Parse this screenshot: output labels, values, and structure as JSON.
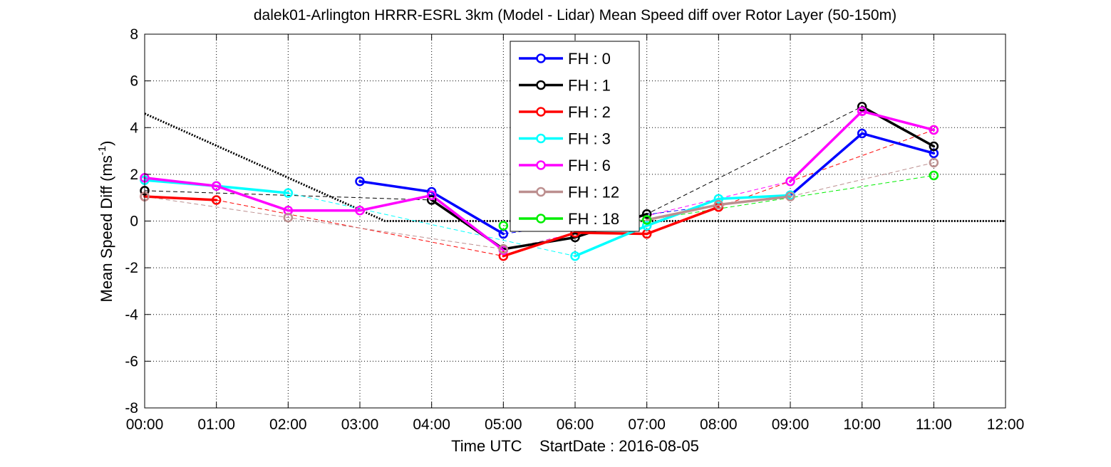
{
  "chart_data": {
    "type": "line",
    "title": "dalek01-Arlington HRRR-ESRL 3km (Model - Lidar) Mean Speed diff over Rotor Layer (50-150m)",
    "xlabel": "Time UTC    StartDate : 2016-08-05",
    "ylabel": "Mean Speed Diff (ms",
    "ylabel_sup": "-1",
    "ylabel_end": ")",
    "xlim": [
      0,
      12
    ],
    "ylim": [
      -8,
      8
    ],
    "grid": true,
    "legend_position": "top-center",
    "x_tick_values": [
      0,
      1,
      2,
      3,
      4,
      5,
      6,
      7,
      8,
      9,
      10,
      11,
      12
    ],
    "x_tick_labels": [
      "00:00",
      "01:00",
      "02:00",
      "03:00",
      "04:00",
      "05:00",
      "06:00",
      "07:00",
      "08:00",
      "09:00",
      "10:00",
      "11:00",
      "12:00"
    ],
    "y_tick_values": [
      -8,
      -6,
      -4,
      -2,
      0,
      2,
      4,
      6,
      8
    ],
    "y_tick_labels": [
      "-8",
      "-6",
      "-4",
      "-2",
      "0",
      "2",
      "4",
      "6",
      "8"
    ],
    "series": [
      {
        "name": "FH : 0",
        "color": "#0000ff",
        "points": [
          [
            3,
            1.7
          ],
          [
            4,
            1.25
          ],
          [
            5,
            -0.55
          ],
          [
            11,
            2.9
          ],
          [
            10,
            3.75
          ],
          [
            9,
            1.1
          ]
        ]
      },
      {
        "name": "FH : 1",
        "color": "#000000",
        "points": [
          [
            0,
            1.3
          ],
          [
            4,
            0.9
          ],
          [
            5,
            -1.2
          ],
          [
            6,
            -0.7
          ],
          [
            7,
            0.3
          ],
          [
            10,
            4.9
          ],
          [
            11,
            3.2
          ]
        ]
      },
      {
        "name": "FH : 2",
        "color": "#ff0000",
        "points": [
          [
            0,
            1.05
          ],
          [
            1,
            0.9
          ],
          [
            5,
            -1.5
          ],
          [
            6,
            -0.5
          ],
          [
            7,
            -0.55
          ],
          [
            8,
            0.6
          ],
          [
            11,
            3.9
          ]
        ]
      },
      {
        "name": "FH : 3",
        "color": "#00ffff",
        "points": [
          [
            0,
            1.75
          ],
          [
            1,
            1.5
          ],
          [
            2,
            1.2
          ],
          [
            6,
            -1.5
          ],
          [
            7,
            -0.2
          ],
          [
            8,
            0.95
          ],
          [
            9,
            1.1
          ]
        ]
      },
      {
        "name": "FH : 6",
        "color": "#ff00ff",
        "points": [
          [
            0,
            1.85
          ],
          [
            1,
            1.5
          ],
          [
            2,
            0.45
          ],
          [
            3,
            0.45
          ],
          [
            4,
            1.1
          ],
          [
            5,
            -1.25
          ],
          [
            9,
            1.7
          ],
          [
            10,
            4.7
          ],
          [
            11,
            3.9
          ]
        ]
      },
      {
        "name": "FH : 12",
        "color": "#bc8f8f",
        "points": [
          [
            0,
            1.05
          ],
          [
            2,
            0.15
          ],
          [
            5,
            -1.2
          ],
          [
            7,
            0.05
          ],
          [
            8,
            0.7
          ],
          [
            9,
            1.05
          ],
          [
            11,
            2.5
          ]
        ]
      },
      {
        "name": "FH : 18",
        "color": "#00ee00",
        "points": [
          [
            5,
            -0.2
          ],
          [
            7,
            0.05
          ],
          [
            11,
            1.95
          ]
        ]
      }
    ],
    "reference_line": {
      "points": [
        [
          0,
          4.6
        ],
        [
          3.35,
          0
        ],
        [
          12,
          0
        ]
      ]
    }
  }
}
